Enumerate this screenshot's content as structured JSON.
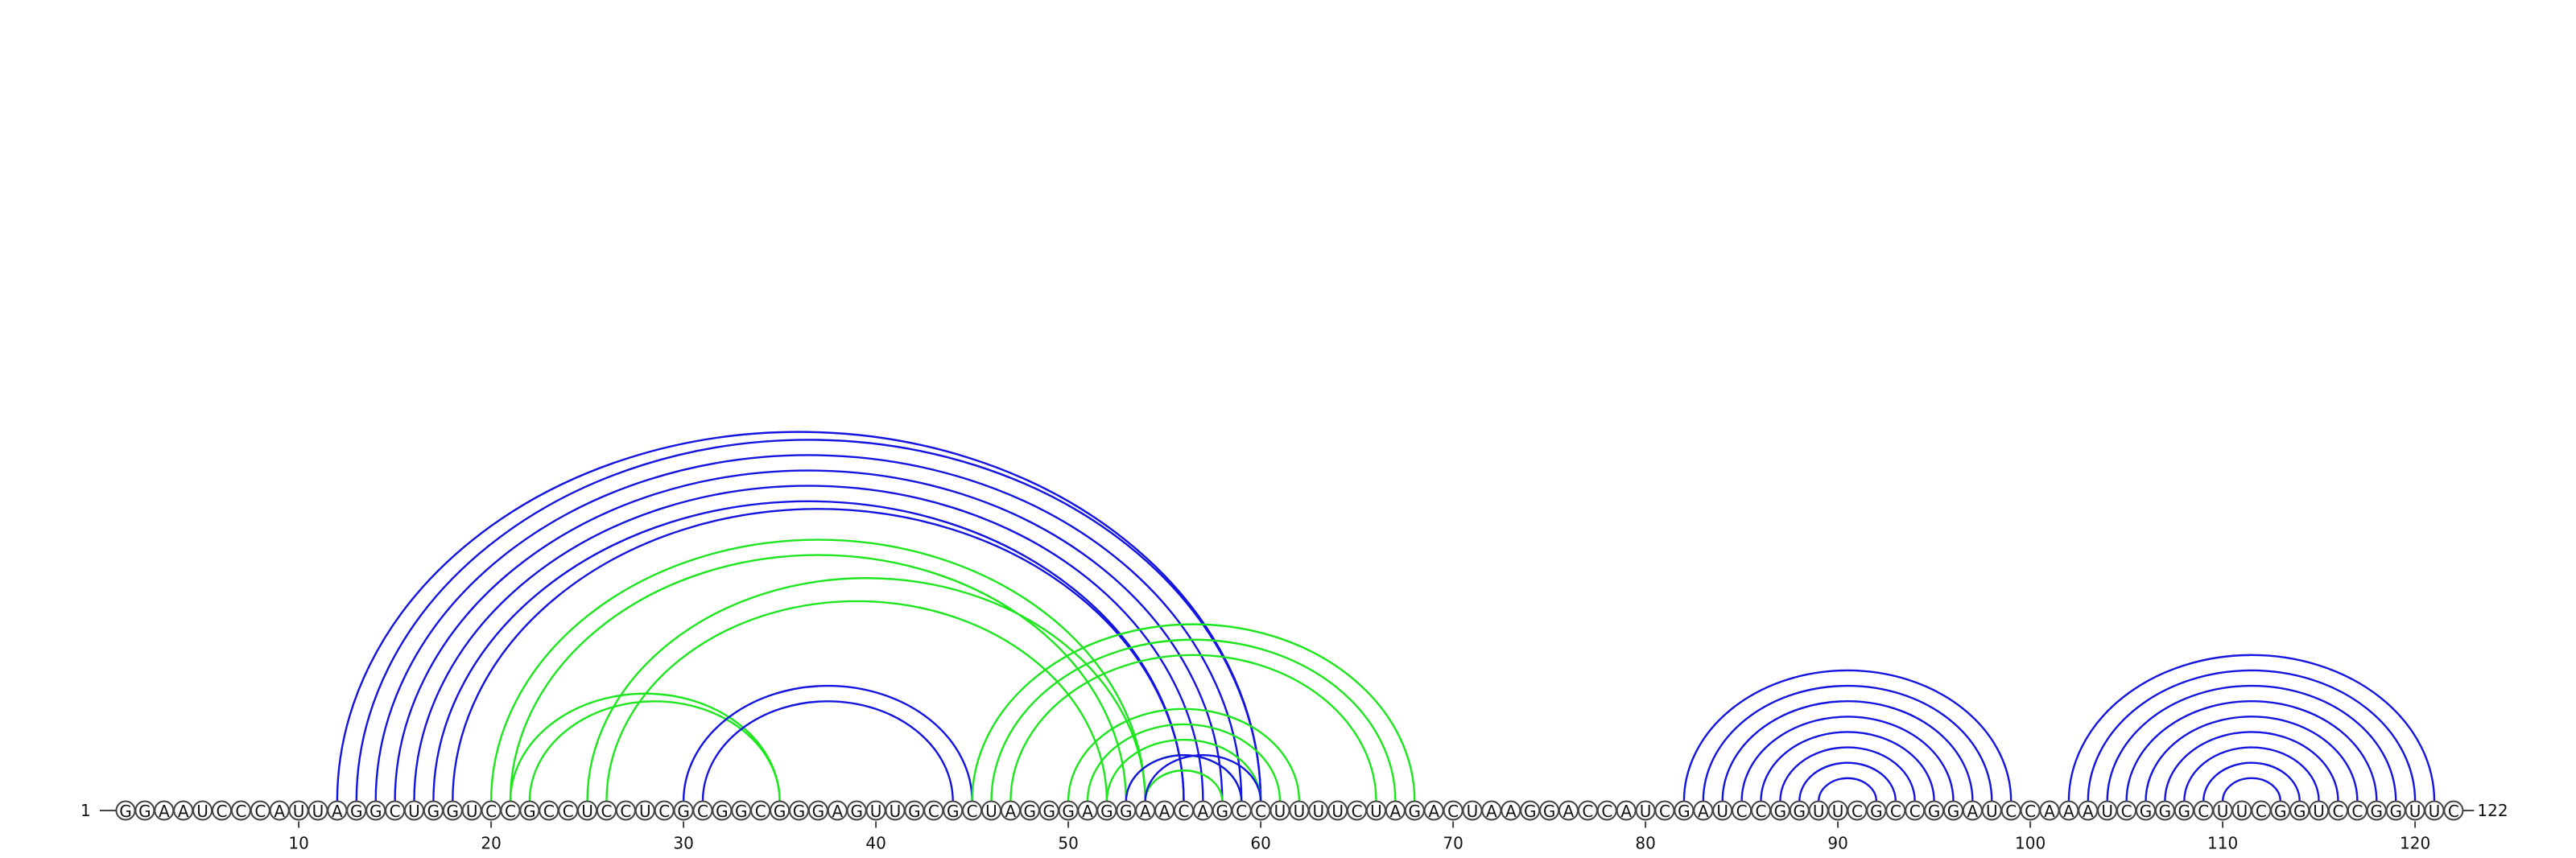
{
  "sequence": "GGAAUCCCAUUAGGCUGGUCCGCCUCCUCGCGGCGGGAGUUGCGCUAGGGAGGAACAGCCUUUUCUAGACUAAGGACCAUCGAUCCGGUUCGCCGGAUCCAAAUCGGGCUUCGGUCCGGUUC",
  "start_label": "1",
  "end_label": "122",
  "ticks": [
    "10",
    "20",
    "30",
    "40",
    "50",
    "60",
    "70",
    "80",
    "90",
    "100",
    "110",
    "120"
  ],
  "colors": {
    "blue": "#1414e0",
    "green": "#1ee61e"
  },
  "chart_data": {
    "type": "arc-diagram",
    "length": 122,
    "arcs": [
      {
        "i": 12,
        "j": 60,
        "color": "blue"
      },
      {
        "i": 13,
        "j": 60,
        "color": "blue"
      },
      {
        "i": 14,
        "j": 59,
        "color": "blue"
      },
      {
        "i": 15,
        "j": 58,
        "color": "blue"
      },
      {
        "i": 16,
        "j": 57,
        "color": "blue"
      },
      {
        "i": 17,
        "j": 56,
        "color": "blue"
      },
      {
        "i": 18,
        "j": 56,
        "color": "blue"
      },
      {
        "i": 20,
        "j": 54,
        "color": "green"
      },
      {
        "i": 21,
        "j": 53,
        "color": "green"
      },
      {
        "i": 21,
        "j": 35,
        "color": "green"
      },
      {
        "i": 22,
        "j": 35,
        "color": "green"
      },
      {
        "i": 25,
        "j": 54,
        "color": "green"
      },
      {
        "i": 26,
        "j": 52,
        "color": "green"
      },
      {
        "i": 30,
        "j": 45,
        "color": "blue"
      },
      {
        "i": 31,
        "j": 44,
        "color": "blue"
      },
      {
        "i": 45,
        "j": 68,
        "color": "green"
      },
      {
        "i": 46,
        "j": 67,
        "color": "green"
      },
      {
        "i": 47,
        "j": 66,
        "color": "green"
      },
      {
        "i": 50,
        "j": 62,
        "color": "green"
      },
      {
        "i": 51,
        "j": 61,
        "color": "green"
      },
      {
        "i": 52,
        "j": 60,
        "color": "green"
      },
      {
        "i": 53,
        "j": 59,
        "color": "green"
      },
      {
        "i": 54,
        "j": 58,
        "color": "green"
      },
      {
        "i": 54,
        "j": 60,
        "color": "blue"
      },
      {
        "i": 53,
        "j": 59,
        "color": "blue"
      },
      {
        "i": 82,
        "j": 99,
        "color": "blue"
      },
      {
        "i": 83,
        "j": 98,
        "color": "blue"
      },
      {
        "i": 84,
        "j": 97,
        "color": "blue"
      },
      {
        "i": 85,
        "j": 96,
        "color": "blue"
      },
      {
        "i": 86,
        "j": 95,
        "color": "blue"
      },
      {
        "i": 87,
        "j": 94,
        "color": "blue"
      },
      {
        "i": 88,
        "j": 93,
        "color": "blue"
      },
      {
        "i": 89,
        "j": 92,
        "color": "blue"
      },
      {
        "i": 102,
        "j": 121,
        "color": "blue"
      },
      {
        "i": 103,
        "j": 120,
        "color": "blue"
      },
      {
        "i": 104,
        "j": 119,
        "color": "blue"
      },
      {
        "i": 105,
        "j": 118,
        "color": "blue"
      },
      {
        "i": 106,
        "j": 117,
        "color": "blue"
      },
      {
        "i": 107,
        "j": 116,
        "color": "blue"
      },
      {
        "i": 108,
        "j": 115,
        "color": "blue"
      },
      {
        "i": 109,
        "j": 114,
        "color": "blue"
      },
      {
        "i": 110,
        "j": 113,
        "color": "blue"
      }
    ]
  }
}
